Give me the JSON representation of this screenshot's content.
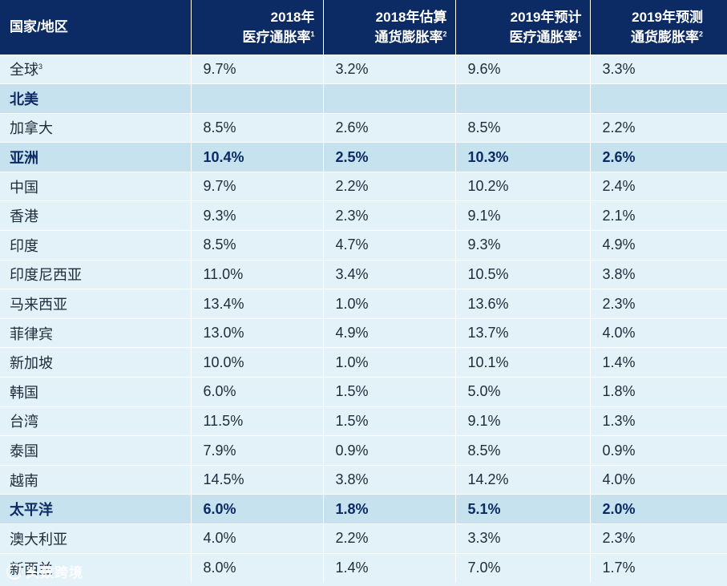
{
  "headers": [
    {
      "line1": "国家/地区",
      "line2": "",
      "sup": ""
    },
    {
      "line1": "2018年",
      "line2": "医疗通胀率",
      "sup": "1"
    },
    {
      "line1": "2018年估算",
      "line2": "通货膨胀率",
      "sup": "2"
    },
    {
      "line1": "2019年预计",
      "line2": "医疗通胀率",
      "sup": "1"
    },
    {
      "line1": "2019年预测",
      "line2": "通货膨胀率",
      "sup": "2"
    }
  ],
  "rows": [
    {
      "name": "全球",
      "sup": "3",
      "region": false,
      "v": [
        "9.7%",
        "3.2%",
        "9.6%",
        "3.3%"
      ]
    },
    {
      "name": "北美",
      "sup": "",
      "region": true,
      "v": [
        "",
        "",
        "",
        ""
      ]
    },
    {
      "name": "加拿大",
      "sup": "",
      "region": false,
      "v": [
        "8.5%",
        "2.6%",
        "8.5%",
        "2.2%"
      ]
    },
    {
      "name": "亚洲",
      "sup": "",
      "region": true,
      "v": [
        "10.4%",
        "2.5%",
        "10.3%",
        "2.6%"
      ]
    },
    {
      "name": "中国",
      "sup": "",
      "region": false,
      "v": [
        "9.7%",
        "2.2%",
        "10.2%",
        "2.4%"
      ]
    },
    {
      "name": "香港",
      "sup": "",
      "region": false,
      "v": [
        "9.3%",
        "2.3%",
        "9.1%",
        "2.1%"
      ]
    },
    {
      "name": "印度",
      "sup": "",
      "region": false,
      "v": [
        "8.5%",
        "4.7%",
        "9.3%",
        "4.9%"
      ]
    },
    {
      "name": "印度尼西亚",
      "sup": "",
      "region": false,
      "v": [
        "11.0%",
        "3.4%",
        "10.5%",
        "3.8%"
      ]
    },
    {
      "name": "马来西亚",
      "sup": "",
      "region": false,
      "v": [
        "13.4%",
        "1.0%",
        "13.6%",
        "2.3%"
      ]
    },
    {
      "name": "菲律宾",
      "sup": "",
      "region": false,
      "v": [
        "13.0%",
        "4.9%",
        "13.7%",
        "4.0%"
      ]
    },
    {
      "name": "新加坡",
      "sup": "",
      "region": false,
      "v": [
        "10.0%",
        "1.0%",
        "10.1%",
        "1.4%"
      ]
    },
    {
      "name": "韩国",
      "sup": "",
      "region": false,
      "v": [
        "6.0%",
        "1.5%",
        "5.0%",
        "1.8%"
      ]
    },
    {
      "name": "台湾",
      "sup": "",
      "region": false,
      "v": [
        "11.5%",
        "1.5%",
        "9.1%",
        "1.3%"
      ]
    },
    {
      "name": "泰国",
      "sup": "",
      "region": false,
      "v": [
        "7.9%",
        "0.9%",
        "8.5%",
        "0.9%"
      ]
    },
    {
      "name": "越南",
      "sup": "",
      "region": false,
      "v": [
        "14.5%",
        "3.8%",
        "14.2%",
        "4.0%"
      ]
    },
    {
      "name": "太平洋",
      "sup": "",
      "region": true,
      "v": [
        "6.0%",
        "1.8%",
        "5.1%",
        "2.0%"
      ]
    },
    {
      "name": "澳大利亚",
      "sup": "",
      "region": false,
      "v": [
        "4.0%",
        "2.2%",
        "3.3%",
        "2.3%"
      ]
    },
    {
      "name": "新西兰",
      "sup": "",
      "region": false,
      "v": [
        "8.0%",
        "1.4%",
        "7.0%",
        "1.7%"
      ]
    }
  ],
  "watermark": "头数跨境"
}
